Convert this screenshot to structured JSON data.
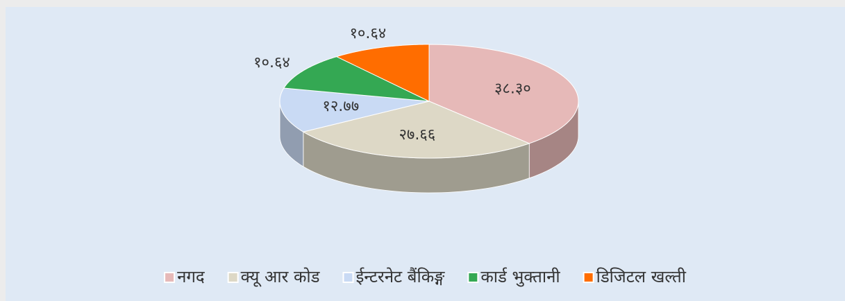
{
  "chart_data": {
    "type": "pie3d",
    "categories": [
      "नगद",
      "क्यू आर कोड",
      "ईन्टरनेट बैंकिङ्ग",
      "कार्ड भुक्तानी",
      "डिजिटल खल्ती"
    ],
    "values": [
      38.3,
      27.66,
      12.77,
      10.64,
      10.64
    ],
    "value_labels": [
      "३८.३०",
      "२७.६६",
      "१२.७७",
      "१०.६४",
      "१०.६४"
    ],
    "colors": [
      "#e6b9b8",
      "#ddd8c6",
      "#c9daf4",
      "#34a853",
      "#ff6d00"
    ],
    "legend": "bottom"
  }
}
